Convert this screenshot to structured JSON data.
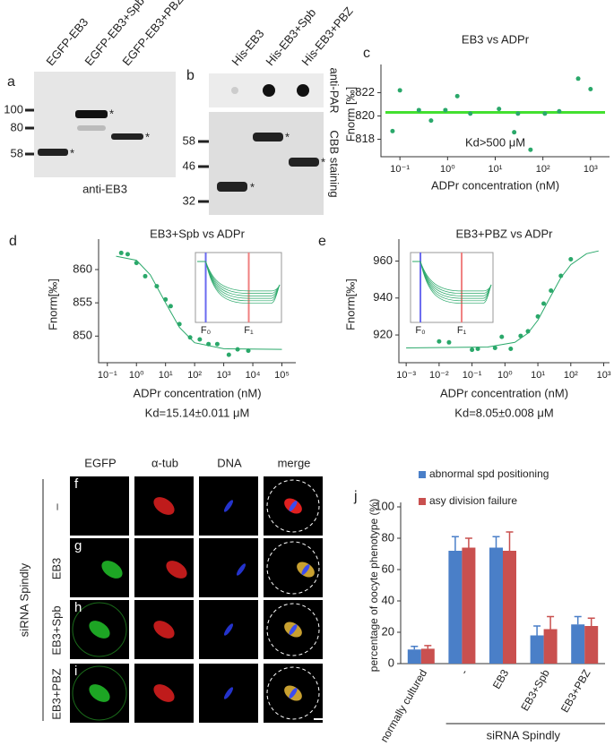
{
  "blots": {
    "a": {
      "letter": "a",
      "lanes": [
        "EGFP-EB3",
        "EGFP-EB3+Spb",
        "EGFP-EB3+PBZ"
      ],
      "markers": [
        "100",
        "80",
        "58"
      ],
      "caption": "anti-EB3",
      "band_mark": "*"
    },
    "b": {
      "letter": "b",
      "lanes": [
        "His-EB3",
        "His-EB3+Spb",
        "His-EB3+PBZ"
      ],
      "top_label": "anti-PAR",
      "markers": [
        "58",
        "46",
        "32"
      ],
      "bottom_label": "CBB staining",
      "band_mark": "*"
    }
  },
  "micrographs": {
    "columns": [
      "EGFP",
      "α-tub",
      "DNA",
      "merge"
    ],
    "rows": [
      {
        "letter": "f",
        "label": "–"
      },
      {
        "letter": "g",
        "label": "EB3"
      },
      {
        "letter": "h",
        "label": "EB3+Spb"
      },
      {
        "letter": "i",
        "label": "EB3+PBZ"
      }
    ],
    "side_label": "siRNA Spindly"
  },
  "chart_data": [
    {
      "type": "scatter",
      "letter": "c",
      "title": "EB3 vs ADPr",
      "xlabel": "ADPr concentration (nM)",
      "ylabel": "Fnorm [‰]",
      "annotation": "Kd>500 μM",
      "xscale": "log",
      "xlim": [
        0.04,
        2500
      ],
      "ylim": [
        816.5,
        823.8
      ],
      "xticks": [
        {
          "value": 0.1,
          "label": "10⁻¹"
        },
        {
          "value": 1,
          "label": "10⁰"
        },
        {
          "value": 10,
          "label": "10¹"
        },
        {
          "value": 100,
          "label": "10²"
        },
        {
          "value": 1000,
          "label": "10³"
        }
      ],
      "yticks": [
        818,
        820,
        822
      ],
      "x": [
        0.07,
        0.1,
        0.25,
        0.45,
        0.9,
        1.6,
        3,
        12,
        25,
        30,
        55,
        110,
        220,
        550,
        1000
      ],
      "values": [
        818.7,
        822.2,
        820.5,
        819.6,
        820.5,
        821.7,
        820.2,
        820.6,
        818.6,
        820.2,
        817.1,
        820.2,
        820.4,
        823.2,
        822.3
      ],
      "fit_value": 820.3,
      "color": "#2aa86a",
      "fit_color": "#44e030"
    },
    {
      "type": "scatter",
      "letter": "d",
      "title": "EB3+Spb vs ADPr",
      "xlabel": "ADPr concentration (nM)",
      "ylabel": "Fnorm[‰]",
      "annotation": "Kd=15.14±0.011 μM",
      "xscale": "log",
      "xlim": [
        0.05,
        300000
      ],
      "ylim": [
        846,
        863.5
      ],
      "xticks": [
        {
          "value": 0.1,
          "label": "10⁻¹"
        },
        {
          "value": 1,
          "label": "10⁰"
        },
        {
          "value": 10,
          "label": "10¹"
        },
        {
          "value": 100,
          "label": "10²"
        },
        {
          "value": 1000,
          "label": "10³"
        },
        {
          "value": 10000,
          "label": "10⁴"
        },
        {
          "value": 100000,
          "label": "10⁵"
        }
      ],
      "yticks": [
        850,
        855,
        860
      ],
      "x": [
        0.3,
        0.5,
        1,
        2,
        5,
        10,
        15,
        30,
        70,
        150,
        300,
        600,
        1500,
        3000,
        7000
      ],
      "values": [
        862.5,
        862.3,
        861,
        859,
        857.5,
        855.5,
        854.5,
        851.8,
        849.8,
        849.5,
        848.8,
        848.8,
        847.2,
        848,
        847.8
      ],
      "fit_x": [
        0.2,
        1,
        3,
        10,
        30,
        100,
        1000,
        100000
      ],
      "fit_values": [
        862,
        861.4,
        859.2,
        855,
        851.3,
        849,
        848.1,
        848
      ],
      "inset_labels": [
        "F₀",
        "F₁"
      ],
      "color": "#2aa86a"
    },
    {
      "type": "scatter",
      "letter": "e",
      "title": "EB3+PBZ vs ADPr",
      "xlabel": "ADPr concentration (nM)",
      "ylabel": "Fnorm[‰]",
      "annotation": "Kd=8.05±0.008 μM",
      "xscale": "log",
      "xlim": [
        0.0006,
        1500
      ],
      "ylim": [
        905,
        968
      ],
      "xticks": [
        {
          "value": 0.001,
          "label": "10⁻³"
        },
        {
          "value": 0.01,
          "label": "10⁻²"
        },
        {
          "value": 0.1,
          "label": "10⁻¹"
        },
        {
          "value": 1,
          "label": "10⁰"
        },
        {
          "value": 10,
          "label": "10¹"
        },
        {
          "value": 100,
          "label": "10²"
        },
        {
          "value": 1000,
          "label": "10³"
        }
      ],
      "yticks": [
        920,
        940,
        960
      ],
      "x": [
        0.01,
        0.02,
        0.1,
        0.15,
        0.5,
        0.8,
        1.5,
        3,
        5,
        10,
        15,
        25,
        50,
        100
      ],
      "values": [
        916.5,
        916,
        912,
        912.5,
        913,
        919,
        912.5,
        919.5,
        922,
        930,
        937,
        944,
        952,
        961
      ],
      "fit_x": [
        0.001,
        0.3,
        2,
        5,
        10,
        20,
        50,
        100,
        300,
        700
      ],
      "fit_values": [
        913,
        913.5,
        916,
        921,
        928,
        938,
        951,
        958,
        964,
        965.5
      ],
      "inset_labels": [
        "F₀",
        "F₁"
      ],
      "color": "#2aa86a"
    },
    {
      "type": "bar",
      "letter": "j",
      "ylabel": "percentage of oocyte phenotype (%)",
      "group_label": "siRNA Spindly",
      "categories": [
        "normally cultured",
        "-",
        "EB3",
        "EB3+Spb",
        "EB3+PBZ"
      ],
      "ylim": [
        0,
        100
      ],
      "yticks": [
        0,
        20,
        40,
        60,
        80,
        100
      ],
      "series": [
        {
          "name": "abnormal spd positioning",
          "color": "#4a7fc8",
          "values": [
            9,
            72,
            74,
            18,
            25
          ],
          "errors": [
            2,
            9,
            7,
            6,
            5
          ]
        },
        {
          "name": "asy division failure",
          "color": "#c9504f",
          "values": [
            9.5,
            74,
            72,
            22,
            24
          ],
          "errors": [
            2,
            6,
            12,
            8,
            5
          ]
        }
      ]
    }
  ]
}
